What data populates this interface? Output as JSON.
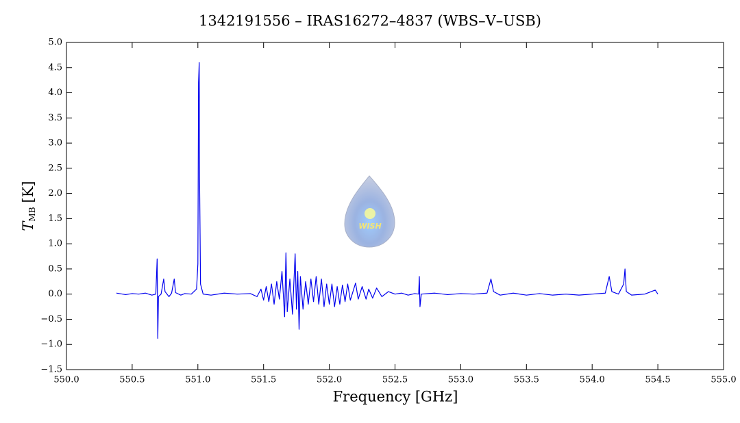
{
  "chart_data": {
    "type": "line",
    "title": "1342191556 – IRAS16272–4837 (WBS–V–USB)",
    "xlabel": "Frequency [GHz]",
    "ylabel": {
      "main": "T",
      "sub": "MB",
      "unit": "[K]"
    },
    "logo_text": "WISH",
    "color": "#0000ee",
    "xlim": [
      550.0,
      555.0
    ],
    "ylim": [
      -1.5,
      5.0
    ],
    "xticks": [
      {
        "value": 550.0,
        "label": "550.0"
      },
      {
        "value": 550.5,
        "label": "550.5"
      },
      {
        "value": 551.0,
        "label": "551.0"
      },
      {
        "value": 551.5,
        "label": "551.5"
      },
      {
        "value": 552.0,
        "label": "552.0"
      },
      {
        "value": 552.5,
        "label": "552.5"
      },
      {
        "value": 553.0,
        "label": "553.0"
      },
      {
        "value": 553.5,
        "label": "553.5"
      },
      {
        "value": 554.0,
        "label": "554.0"
      },
      {
        "value": 554.5,
        "label": "554.5"
      },
      {
        "value": 555.0,
        "label": "555.0"
      }
    ],
    "yticks": [
      {
        "value": -1.5,
        "label": "−1.5"
      },
      {
        "value": -1.0,
        "label": "−1.0"
      },
      {
        "value": -0.5,
        "label": "−0.5"
      },
      {
        "value": 0.0,
        "label": "0.0"
      },
      {
        "value": 0.5,
        "label": "0.5"
      },
      {
        "value": 1.0,
        "label": "1.0"
      },
      {
        "value": 1.5,
        "label": "1.5"
      },
      {
        "value": 2.0,
        "label": "2.0"
      },
      {
        "value": 2.5,
        "label": "2.5"
      },
      {
        "value": 3.0,
        "label": "3.0"
      },
      {
        "value": 3.5,
        "label": "3.5"
      },
      {
        "value": 4.0,
        "label": "4.0"
      },
      {
        "value": 4.5,
        "label": "4.5"
      },
      {
        "value": 5.0,
        "label": "5.0"
      }
    ],
    "x": [
      550.38,
      550.45,
      550.5,
      550.55,
      550.6,
      550.65,
      550.68,
      550.69,
      550.695,
      550.7,
      550.72,
      550.74,
      550.75,
      550.78,
      550.8,
      550.82,
      550.83,
      550.87,
      550.9,
      550.95,
      550.99,
      551.0,
      551.005,
      551.01,
      551.013,
      551.02,
      551.04,
      551.1,
      551.2,
      551.3,
      551.4,
      551.45,
      551.48,
      551.5,
      551.52,
      551.54,
      551.56,
      551.58,
      551.6,
      551.62,
      551.64,
      551.66,
      551.67,
      551.68,
      551.7,
      551.72,
      551.73,
      551.74,
      551.75,
      551.76,
      551.77,
      551.78,
      551.8,
      551.82,
      551.84,
      551.86,
      551.88,
      551.9,
      551.92,
      551.94,
      551.96,
      551.98,
      552.0,
      552.02,
      552.04,
      552.06,
      552.08,
      552.1,
      552.12,
      552.14,
      552.16,
      552.2,
      552.22,
      552.25,
      552.28,
      552.3,
      552.33,
      552.36,
      552.4,
      552.45,
      552.5,
      552.55,
      552.6,
      552.65,
      552.68,
      552.685,
      552.69,
      552.7,
      552.8,
      552.9,
      553.0,
      553.1,
      553.2,
      553.23,
      553.25,
      553.3,
      553.4,
      553.5,
      553.6,
      553.7,
      553.8,
      553.9,
      554.0,
      554.1,
      554.13,
      554.15,
      554.2,
      554.24,
      554.25,
      554.26,
      554.3,
      554.4,
      554.48,
      554.5
    ],
    "values": [
      0.02,
      -0.01,
      0.01,
      0.0,
      0.02,
      -0.02,
      0.0,
      0.7,
      -0.88,
      -0.05,
      0.0,
      0.3,
      0.05,
      -0.05,
      0.02,
      0.3,
      0.03,
      -0.02,
      0.01,
      0.0,
      0.1,
      0.6,
      4.2,
      4.6,
      2.3,
      0.2,
      0.0,
      -0.02,
      0.02,
      0.0,
      0.01,
      -0.05,
      0.1,
      -0.12,
      0.15,
      -0.15,
      0.2,
      -0.2,
      0.25,
      -0.1,
      0.45,
      -0.45,
      0.82,
      -0.35,
      0.3,
      -0.4,
      0.2,
      0.8,
      -0.3,
      0.45,
      -0.7,
      0.35,
      -0.3,
      0.25,
      -0.2,
      0.3,
      -0.15,
      0.35,
      -0.2,
      0.3,
      -0.25,
      0.2,
      -0.2,
      0.2,
      -0.25,
      0.15,
      -0.2,
      0.18,
      -0.15,
      0.2,
      -0.12,
      0.22,
      -0.1,
      0.15,
      -0.1,
      0.1,
      -0.08,
      0.12,
      -0.05,
      0.05,
      0.0,
      0.02,
      -0.02,
      0.01,
      0.0,
      0.35,
      -0.25,
      0.0,
      0.02,
      -0.01,
      0.01,
      0.0,
      0.02,
      0.3,
      0.05,
      -0.02,
      0.02,
      -0.02,
      0.01,
      -0.02,
      0.0,
      -0.02,
      0.0,
      0.02,
      0.35,
      0.05,
      0.0,
      0.2,
      0.5,
      0.05,
      -0.02,
      0.0,
      0.08,
      0.0
    ]
  }
}
